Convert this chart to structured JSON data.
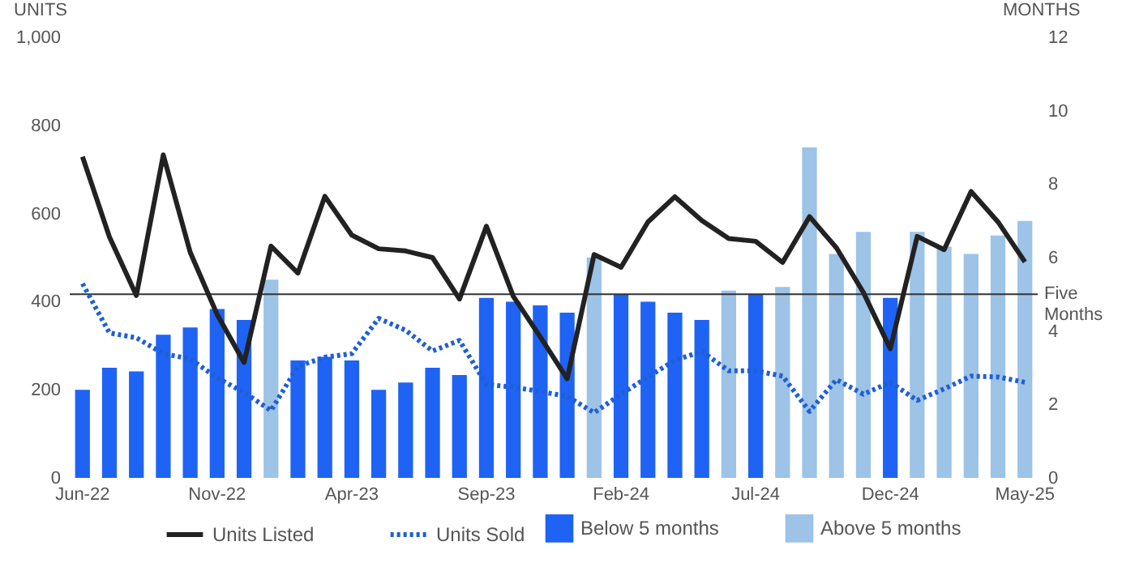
{
  "chart_data": {
    "type": "bar",
    "ylabel": "UNITS",
    "y2label": "MONTHS",
    "categories": [
      "Jun-22",
      null,
      null,
      null,
      null,
      "Nov-22",
      null,
      null,
      null,
      null,
      "Apr-23",
      null,
      null,
      null,
      null,
      "Sep-23",
      null,
      null,
      null,
      null,
      "Feb-24",
      null,
      null,
      null,
      null,
      "Jul-24",
      null,
      null,
      null,
      null,
      "Dec-24",
      null,
      null,
      null,
      null,
      "May-25"
    ],
    "series": [
      {
        "name": "Units Listed",
        "type": "line",
        "color": "#222222",
        "line_style": "solid",
        "values": [
          729,
          547,
          414,
          733,
          512,
          371,
          262,
          526,
          465,
          639,
          551,
          520,
          515,
          500,
          406,
          571,
          412,
          320,
          225,
          507,
          478,
          581,
          638,
          584,
          543,
          537,
          489,
          593,
          522,
          421,
          293,
          548,
          518,
          650,
          581,
          490
        ]
      },
      {
        "name": "Units Sold",
        "type": "line",
        "color": "#1f5fd6",
        "line_style": "dotted",
        "values": [
          441,
          329,
          318,
          282,
          270,
          227,
          194,
          153,
          253,
          274,
          282,
          362,
          335,
          288,
          312,
          212,
          206,
          196,
          185,
          148,
          190,
          229,
          267,
          287,
          243,
          243,
          231,
          151,
          223,
          190,
          217,
          176,
          202,
          231,
          229,
          217
        ]
      },
      {
        "name": "Below 5 months",
        "axis": "y2",
        "color": "#1f63f5",
        "values": [
          2.4,
          3.0,
          2.9,
          3.9,
          4.1,
          4.6,
          4.3,
          null,
          3.2,
          3.3,
          3.2,
          2.4,
          2.6,
          3.0,
          2.8,
          4.9,
          4.8,
          4.7,
          4.5,
          null,
          5.0,
          4.8,
          4.5,
          4.3,
          null,
          5.0,
          null,
          null,
          null,
          null,
          4.9,
          null,
          null,
          null,
          null,
          null
        ]
      },
      {
        "name": "Above 5 months",
        "axis": "y2",
        "color": "#9dc3e6",
        "values": [
          null,
          null,
          null,
          null,
          null,
          null,
          null,
          5.4,
          null,
          null,
          null,
          null,
          null,
          null,
          null,
          null,
          null,
          null,
          null,
          6.0,
          null,
          null,
          null,
          null,
          5.1,
          null,
          5.2,
          9.0,
          6.1,
          6.7,
          null,
          6.7,
          6.3,
          6.1,
          6.6,
          7.0
        ]
      }
    ],
    "ylim": [
      0,
      1000
    ],
    "yticks": [
      0,
      200,
      400,
      600,
      800,
      {
        "value": 1000,
        "label": "1,000"
      }
    ],
    "y2lim": [
      0,
      12
    ],
    "y2ticks": [
      0,
      2,
      4,
      6,
      8,
      10,
      12
    ],
    "ref_lines": [
      {
        "axis": "y2",
        "value": 5,
        "label": "Five Months",
        "color": "#333333"
      }
    ],
    "legend": "bottom",
    "grid": false,
    "marker": "none"
  }
}
